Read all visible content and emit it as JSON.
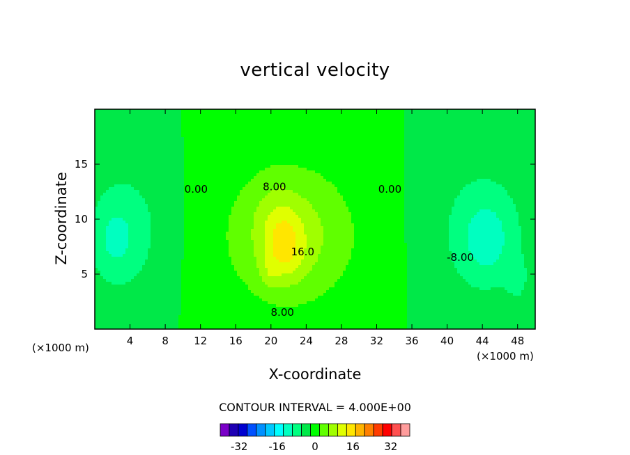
{
  "chart_data": {
    "type": "heatmap",
    "subtype": "filled-contour",
    "title": "vertical velocity",
    "xlabel": "X-coordinate",
    "ylabel": "Z-coordinate",
    "x_unit": "(×1000 m)",
    "xlim": [
      0,
      50
    ],
    "ylim": [
      0,
      20
    ],
    "xticks": [
      4,
      8,
      12,
      16,
      20,
      24,
      28,
      32,
      36,
      40,
      44,
      48
    ],
    "yticks": [
      5,
      10,
      15
    ],
    "contour_interval_label": "CONTOUR INTERVAL = 4.000E+00",
    "contour_labels": [
      {
        "text": "0.00",
        "x": 11.5,
        "z": 12.7
      },
      {
        "text": "8.00",
        "x": 20.4,
        "z": 12.9
      },
      {
        "text": "16.0",
        "x": 23.6,
        "z": 7.0
      },
      {
        "text": "8.00",
        "x": 21.3,
        "z": 1.5
      },
      {
        "text": "0.00",
        "x": 33.5,
        "z": 12.7
      },
      {
        "text": "-8.00",
        "x": 41.5,
        "z": 6.5
      }
    ],
    "field": {
      "background": 0,
      "components": [
        {
          "x": 22.2,
          "z": 8.5,
          "sx": 7.5,
          "sz": 6.5,
          "amp": 10
        },
        {
          "x": 21.5,
          "z": 7.5,
          "sx": 2.2,
          "sz": 3.0,
          "amp": 9
        },
        {
          "x": 19.8,
          "z": 5.0,
          "sx": 1.0,
          "sz": 1.5,
          "amp": 3
        },
        {
          "x": 20.5,
          "z": 11.0,
          "sx": 2.5,
          "sz": 3.0,
          "amp": 2
        },
        {
          "x": 3.5,
          "z": 9.0,
          "sx": 4.5,
          "sz": 6.0,
          "amp": -6
        },
        {
          "x": 2.0,
          "z": 8.0,
          "sx": 2.5,
          "sz": 3.5,
          "amp": -4
        },
        {
          "x": 44.0,
          "z": 9.0,
          "sx": 5.5,
          "sz": 6.5,
          "amp": -6
        },
        {
          "x": 44.5,
          "z": 8.0,
          "sx": 2.8,
          "sz": 3.5,
          "amp": -5
        },
        {
          "x": 48.0,
          "z": 4.5,
          "sx": 1.2,
          "sz": 2.0,
          "amp": -4
        }
      ]
    },
    "colorbar": {
      "levels": [
        -40,
        -36,
        -32,
        -28,
        -24,
        -20,
        -16,
        -12,
        -8,
        -4,
        0,
        4,
        8,
        12,
        16,
        20,
        24,
        28,
        32,
        36,
        40
      ],
      "colors": [
        "#7a00c8",
        "#1e00b4",
        "#0000d0",
        "#0050ff",
        "#0090ff",
        "#00c8ff",
        "#00ffff",
        "#00ffc0",
        "#00ff80",
        "#00e848",
        "#00ff00",
        "#60ff00",
        "#a0ff00",
        "#e0ff00",
        "#ffe600",
        "#ffb400",
        "#ff8000",
        "#ff3c00",
        "#ff0000",
        "#ff5050",
        "#ff9c9c"
      ],
      "tick_labels": [
        "-32",
        "-16",
        "0",
        "16",
        "32"
      ],
      "tick_values": [
        -32,
        -16,
        0,
        16,
        32
      ]
    }
  }
}
